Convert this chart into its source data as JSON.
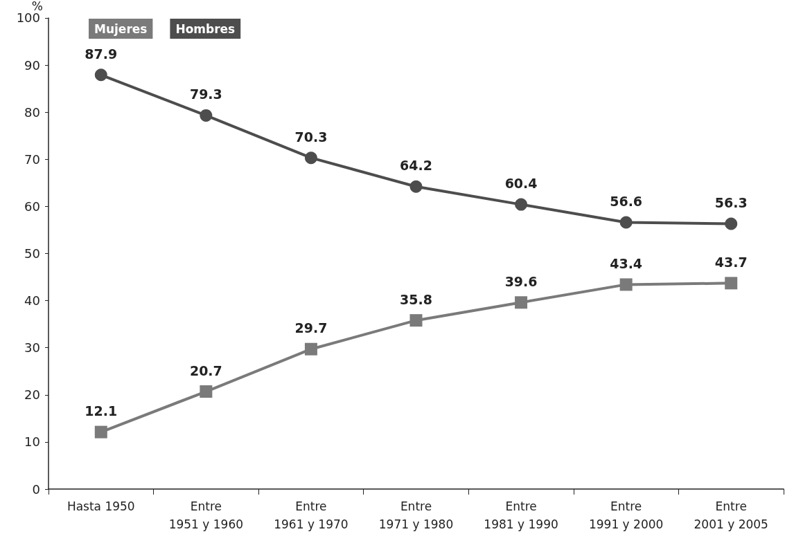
{
  "chart_data": {
    "type": "line",
    "ylabel": "%",
    "categories": [
      "Hasta 1950",
      "Entre\n1951 y 1960",
      "Entre\n1961 y 1970",
      "Entre\n1971 y 1980",
      "Entre\n1981 y 1990",
      "Entre\n1991 y 2000",
      "Entre\n2001 y 2005"
    ],
    "series": [
      {
        "name": "Mujeres",
        "color": "#7a7a7a",
        "marker": "square",
        "values": [
          12.1,
          20.7,
          29.7,
          35.8,
          39.6,
          43.4,
          43.7
        ]
      },
      {
        "name": "Hombres",
        "color": "#4d4d4d",
        "marker": "circle",
        "values": [
          87.9,
          79.3,
          70.3,
          64.2,
          60.4,
          56.6,
          56.3
        ]
      }
    ],
    "ylim": [
      0,
      100
    ],
    "yticks": [
      0,
      10,
      20,
      30,
      40,
      50,
      60,
      70,
      80,
      90,
      100
    ],
    "grid": false,
    "legend": "top left",
    "data_labels": true,
    "line_style": "solid"
  }
}
